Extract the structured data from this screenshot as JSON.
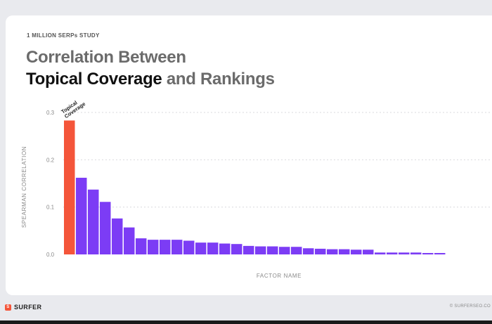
{
  "header": {
    "eyebrow": "1 MILLION SERPs STUDY",
    "title_line1": "Correlation Between",
    "title_emph": "Topical Coverage",
    "title_rest": " and Rankings"
  },
  "footer": {
    "brand": "SURFER",
    "url": "© SURFERSEO.CO"
  },
  "colors": {
    "highlight": "#f4553a",
    "bars": "#7c3cf5",
    "grid": "#d9d9de",
    "axis_text": "#8a8a8a"
  },
  "chart_data": {
    "type": "bar",
    "title": "Correlation Between Topical Coverage and Rankings",
    "xlabel": "FACTOR NAME",
    "ylabel": "SPEARMAN CORRELATION",
    "ylim": [
      0,
      0.3
    ],
    "yticks": [
      "0.0",
      "0.1",
      "0.2",
      "0.3"
    ],
    "grid": true,
    "highlight_label": "Topical Coverage",
    "highlight_index": 0,
    "values": [
      0.283,
      0.162,
      0.137,
      0.111,
      0.076,
      0.057,
      0.034,
      0.031,
      0.031,
      0.031,
      0.029,
      0.025,
      0.025,
      0.023,
      0.022,
      0.018,
      0.017,
      0.017,
      0.016,
      0.016,
      0.013,
      0.012,
      0.011,
      0.011,
      0.01,
      0.01,
      0.004,
      0.004,
      0.004,
      0.004,
      0.003,
      0.003
    ]
  }
}
